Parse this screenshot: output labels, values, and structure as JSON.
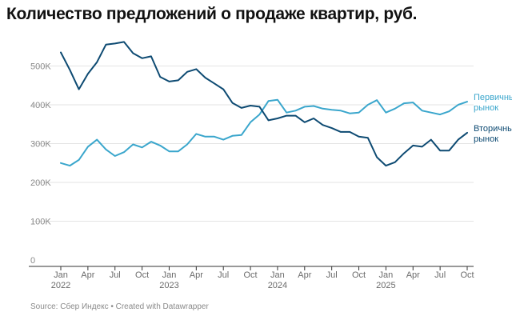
{
  "title": "Количество предложений о продаже квартир, руб.",
  "source": "Source: Сбер Индекс • Created with Datawrapper",
  "colors": {
    "primary": "#3aa6cc",
    "secondary": "#0d4a72",
    "grid": "#e3e3e3",
    "axis": "#333333"
  },
  "chart_data": {
    "type": "line",
    "title": "Количество предложений о продаже квартир, руб.",
    "xlabel": "",
    "ylabel": "",
    "ylim": [
      0,
      600000
    ],
    "yticks": [
      0,
      100000,
      200000,
      300000,
      400000,
      500000
    ],
    "ytick_labels": [
      "0",
      "100K",
      "200K",
      "300K",
      "400K",
      "500K"
    ],
    "x_start": "2022-01",
    "xticks": [
      {
        "index": 0,
        "month": "Jan",
        "year": "2022"
      },
      {
        "index": 3,
        "month": "Apr",
        "year": ""
      },
      {
        "index": 6,
        "month": "Jul",
        "year": ""
      },
      {
        "index": 9,
        "month": "Oct",
        "year": ""
      },
      {
        "index": 12,
        "month": "Jan",
        "year": "2023"
      },
      {
        "index": 15,
        "month": "Apr",
        "year": ""
      },
      {
        "index": 18,
        "month": "Jul",
        "year": ""
      },
      {
        "index": 21,
        "month": "Oct",
        "year": ""
      },
      {
        "index": 24,
        "month": "Jan",
        "year": "2024"
      },
      {
        "index": 27,
        "month": "Apr",
        "year": ""
      },
      {
        "index": 30,
        "month": "Jul",
        "year": ""
      },
      {
        "index": 33,
        "month": "Oct",
        "year": ""
      },
      {
        "index": 36,
        "month": "Jan",
        "year": "2025"
      },
      {
        "index": 39,
        "month": "Apr",
        "year": ""
      },
      {
        "index": 42,
        "month": "Jul",
        "year": ""
      },
      {
        "index": 45,
        "month": "Oct",
        "year": ""
      }
    ],
    "series": [
      {
        "name": "Первичный рынок",
        "label_lines": [
          "Первичный",
          "рынок"
        ],
        "color": "#3aa6cc",
        "values": [
          250000,
          243000,
          258000,
          292000,
          310000,
          285000,
          268000,
          278000,
          298000,
          290000,
          305000,
          295000,
          280000,
          280000,
          298000,
          325000,
          318000,
          318000,
          310000,
          320000,
          322000,
          355000,
          375000,
          410000,
          413000,
          380000,
          385000,
          395000,
          397000,
          390000,
          387000,
          385000,
          378000,
          380000,
          400000,
          412000,
          380000,
          390000,
          404000,
          406000,
          385000,
          380000,
          375000,
          383000,
          400000,
          408000
        ]
      },
      {
        "name": "Вторичный рынок",
        "label_lines": [
          "Вторичный",
          "рынок"
        ],
        "color": "#0d4a72",
        "values": [
          535000,
          490000,
          440000,
          480000,
          510000,
          555000,
          558000,
          562000,
          533000,
          520000,
          525000,
          472000,
          460000,
          463000,
          485000,
          492000,
          470000,
          455000,
          440000,
          405000,
          392000,
          398000,
          395000,
          360000,
          365000,
          372000,
          372000,
          355000,
          365000,
          348000,
          340000,
          330000,
          330000,
          318000,
          315000,
          265000,
          243000,
          252000,
          275000,
          295000,
          292000,
          310000,
          282000,
          282000,
          310000,
          328000
        ]
      }
    ]
  }
}
